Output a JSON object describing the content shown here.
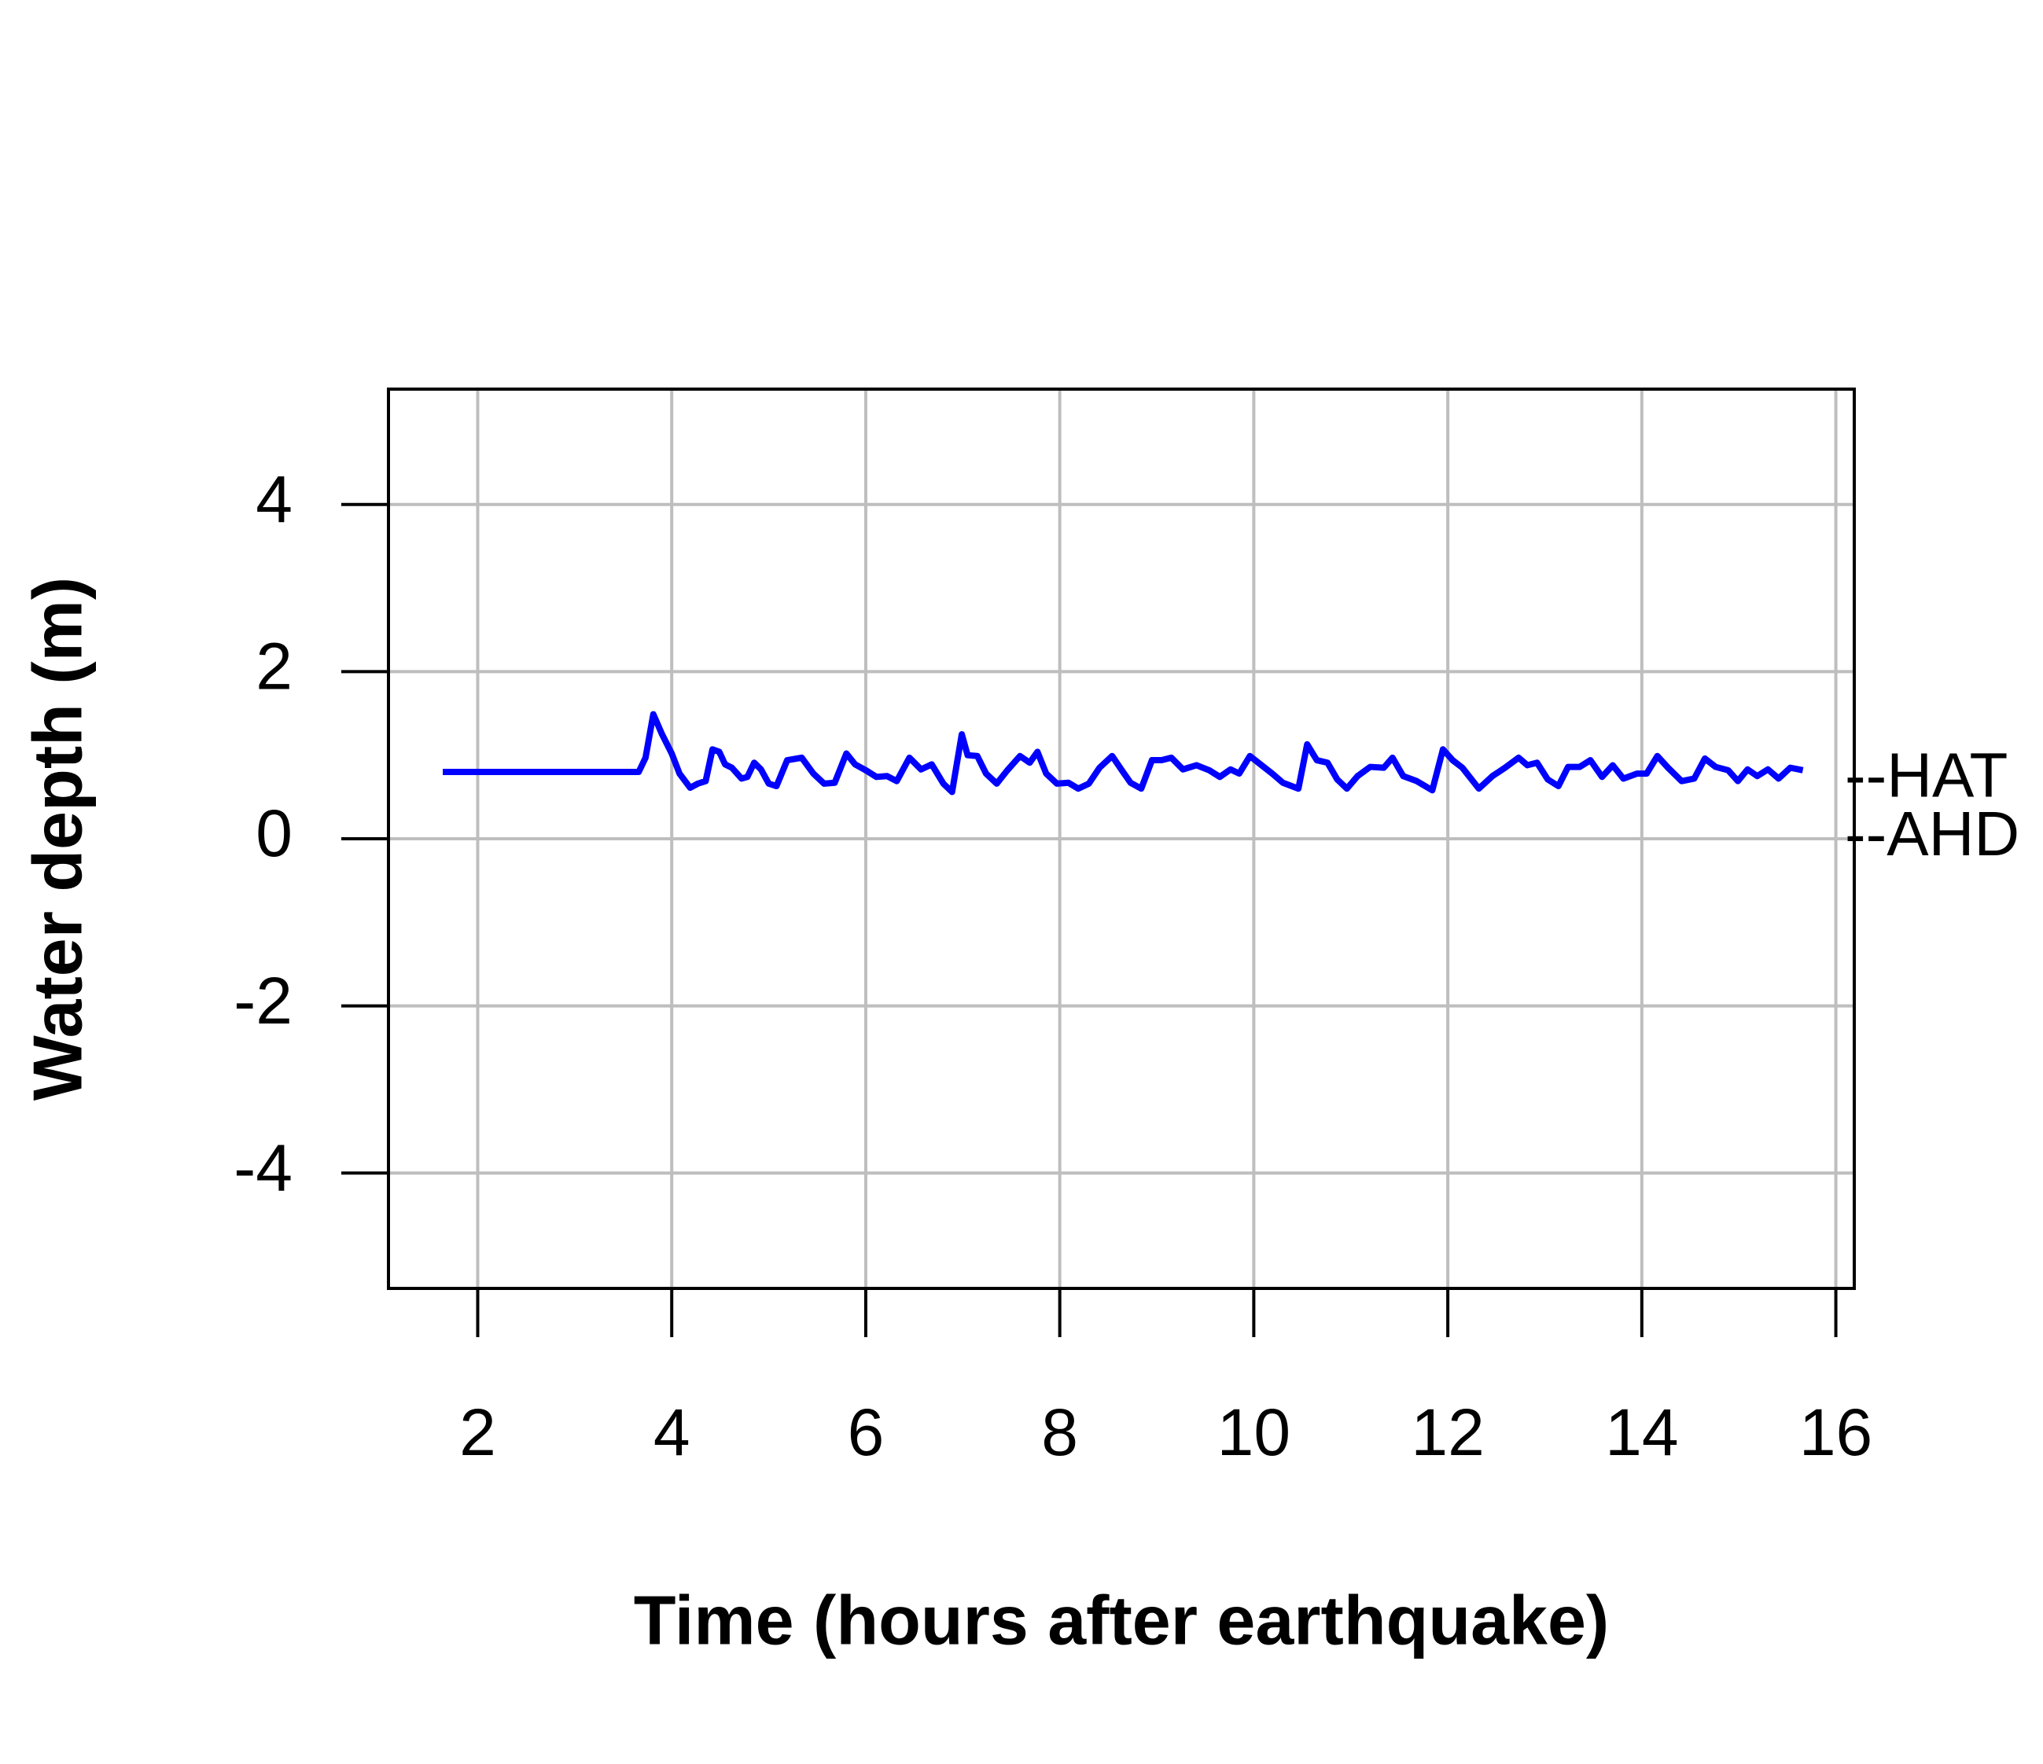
{
  "chart_data": {
    "type": "line",
    "x_label": "Time (hours after earthquake)",
    "y_label": "Water depth (m)",
    "xlim": [
      1.08,
      16.19
    ],
    "ylim": [
      -5.38,
      5.38
    ],
    "xticks": [
      2,
      4,
      6,
      8,
      10,
      12,
      14,
      16
    ],
    "yticks": [
      -4,
      -2,
      0,
      2,
      4
    ],
    "grid": true,
    "annotations": [
      {
        "text": "--HAT",
        "y": 0.7
      },
      {
        "text": "--AHD",
        "y": 0
      }
    ],
    "series": [
      {
        "color": "#0000ff",
        "x": [
          1.64,
          3.66,
          3.73,
          3.81,
          3.9,
          4.0,
          4.08,
          4.19,
          4.27,
          4.35,
          4.42,
          4.49,
          4.55,
          4.62,
          4.72,
          4.78,
          4.85,
          4.92,
          5.0,
          5.08,
          5.19,
          5.34,
          5.46,
          5.57,
          5.68,
          5.8,
          5.89,
          6.0,
          6.11,
          6.22,
          6.32,
          6.45,
          6.57,
          6.68,
          6.8,
          6.89,
          6.99,
          7.05,
          7.15,
          7.24,
          7.35,
          7.46,
          7.59,
          7.69,
          7.77,
          7.86,
          7.97,
          8.09,
          8.19,
          8.3,
          8.41,
          8.54,
          8.64,
          8.73,
          8.84,
          8.95,
          9.05,
          9.15,
          9.27,
          9.41,
          9.54,
          9.65,
          9.76,
          9.85,
          9.96,
          10.08,
          10.19,
          10.3,
          10.46,
          10.55,
          10.65,
          10.76,
          10.86,
          10.96,
          11.07,
          11.2,
          11.34,
          11.43,
          11.54,
          11.68,
          11.84,
          11.95,
          12.05,
          12.15,
          12.32,
          12.46,
          12.59,
          12.73,
          12.82,
          12.92,
          13.03,
          13.14,
          13.24,
          13.36,
          13.47,
          13.59,
          13.7,
          13.81,
          13.95,
          14.05,
          14.16,
          14.27,
          14.41,
          14.54,
          14.65,
          14.76,
          14.89,
          14.99,
          15.09,
          15.19,
          15.3,
          15.41,
          15.53,
          15.66
        ],
        "values": [
          0.8,
          0.8,
          0.97,
          1.49,
          1.25,
          1.02,
          0.78,
          0.61,
          0.66,
          0.69,
          1.07,
          1.04,
          0.89,
          0.85,
          0.72,
          0.74,
          0.91,
          0.83,
          0.66,
          0.63,
          0.94,
          0.97,
          0.78,
          0.66,
          0.67,
          1.02,
          0.89,
          0.82,
          0.74,
          0.75,
          0.69,
          0.97,
          0.83,
          0.89,
          0.66,
          0.56,
          1.25,
          1.0,
          0.99,
          0.78,
          0.66,
          0.82,
          0.99,
          0.91,
          1.04,
          0.78,
          0.66,
          0.67,
          0.6,
          0.66,
          0.85,
          0.99,
          0.82,
          0.67,
          0.6,
          0.94,
          0.94,
          0.97,
          0.83,
          0.88,
          0.82,
          0.74,
          0.83,
          0.78,
          0.99,
          0.88,
          0.78,
          0.67,
          0.6,
          1.13,
          0.94,
          0.91,
          0.71,
          0.6,
          0.75,
          0.86,
          0.85,
          0.97,
          0.75,
          0.69,
          0.58,
          1.07,
          0.94,
          0.85,
          0.6,
          0.75,
          0.85,
          0.97,
          0.88,
          0.91,
          0.71,
          0.63,
          0.86,
          0.86,
          0.94,
          0.74,
          0.88,
          0.72,
          0.78,
          0.78,
          0.99,
          0.85,
          0.69,
          0.72,
          0.96,
          0.86,
          0.82,
          0.69,
          0.83,
          0.75,
          0.83,
          0.72,
          0.85,
          0.82
        ]
      }
    ]
  }
}
